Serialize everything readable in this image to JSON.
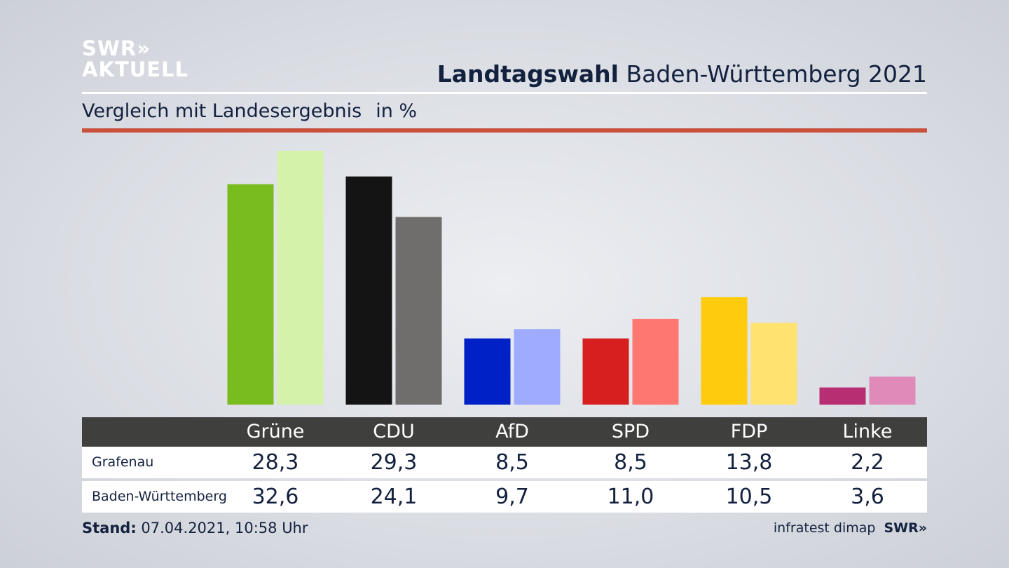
{
  "logo": {
    "line1": "SWR»",
    "line2": "AKTUELL"
  },
  "header": {
    "title_bold": "Landtagswahl",
    "title_rest": "Baden-Württemberg 2021"
  },
  "subtitle": {
    "text": "Vergleich mit Landesergebnis",
    "unit": "in %"
  },
  "table": {
    "parties": [
      "Grüne",
      "CDU",
      "AfD",
      "SPD",
      "FDP",
      "Linke"
    ],
    "rows": [
      {
        "label": "Grafenau",
        "values": [
          "28,3",
          "29,3",
          "8,5",
          "8,5",
          "13,8",
          "2,2"
        ]
      },
      {
        "label": "Baden-Württemberg",
        "values": [
          "32,6",
          "24,1",
          "9,7",
          "11,0",
          "10,5",
          "3,6"
        ]
      }
    ]
  },
  "footer": {
    "stand_label": "Stand:",
    "stand_value": "07.04.2021, 10:58 Uhr",
    "source": "infratest dimap",
    "source_logo": "SWR»"
  },
  "chart_data": {
    "type": "bar",
    "categories": [
      "Grüne",
      "CDU",
      "AfD",
      "SPD",
      "FDP",
      "Linke"
    ],
    "series": [
      {
        "name": "Grafenau",
        "values": [
          28.3,
          29.3,
          8.5,
          8.5,
          13.8,
          2.2
        ],
        "colors": [
          "#78bc1e",
          "#141414",
          "#0021c6",
          "#d71f20",
          "#ffcb0d",
          "#b82e73"
        ]
      },
      {
        "name": "Baden-Württemberg",
        "values": [
          32.6,
          24.1,
          9.7,
          11.0,
          10.5,
          3.6
        ],
        "colors": [
          "#d4f2aa",
          "#6f6e6c",
          "#9eabfe",
          "#ff7771",
          "#ffe270",
          "#df8ab9"
        ]
      }
    ],
    "ylim": [
      0,
      32.6
    ]
  }
}
